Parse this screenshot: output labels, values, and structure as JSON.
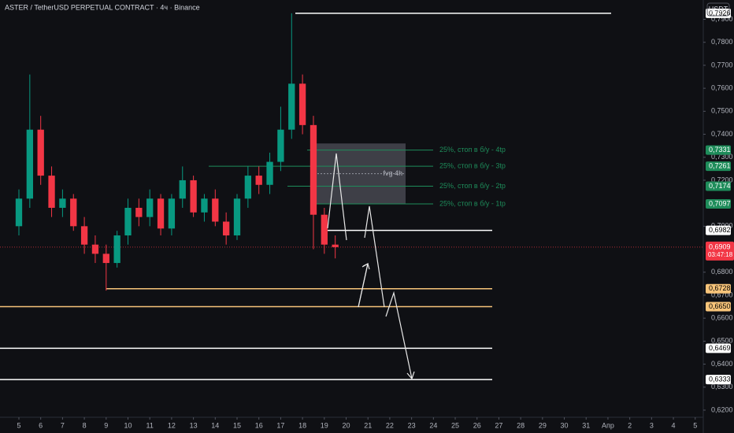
{
  "chart_data": {
    "type": "candlestick",
    "title": "ASTER / TetherUSD PERPETUAL CONTRACT · 4ч · Binance",
    "currency": "USDT",
    "x": [
      0,
      0.5,
      1,
      1.5,
      2,
      2.5,
      3,
      3.5,
      4,
      4.5,
      5,
      5.5,
      6,
      6.5,
      7,
      7.5,
      8,
      8.5,
      9,
      9.5,
      10,
      10.5,
      11,
      11.5,
      12,
      12.5,
      13,
      13.5,
      14,
      14.5
    ],
    "open": [
      0.7,
      0.712,
      0.742,
      0.722,
      0.708,
      0.712,
      0.7,
      0.692,
      0.688,
      0.684,
      0.696,
      0.708,
      0.704,
      0.712,
      0.699,
      0.712,
      0.72,
      0.706,
      0.712,
      0.702,
      0.696,
      0.712,
      0.722,
      0.718,
      0.728,
      0.742,
      0.762,
      0.744,
      0.705,
      0.692
    ],
    "high": [
      0.716,
      0.766,
      0.748,
      0.726,
      0.716,
      0.714,
      0.704,
      0.696,
      0.692,
      0.698,
      0.712,
      0.712,
      0.716,
      0.714,
      0.714,
      0.726,
      0.722,
      0.714,
      0.716,
      0.706,
      0.714,
      0.726,
      0.726,
      0.732,
      0.752,
      0.7926,
      0.766,
      0.748,
      0.708,
      0.696
    ],
    "low": [
      0.696,
      0.708,
      0.718,
      0.704,
      0.704,
      0.698,
      0.688,
      0.684,
      0.672,
      0.682,
      0.692,
      0.7,
      0.7,
      0.696,
      0.696,
      0.708,
      0.704,
      0.702,
      0.7,
      0.692,
      0.694,
      0.708,
      0.714,
      0.714,
      0.724,
      0.738,
      0.74,
      0.69,
      0.688,
      0.686
    ],
    "close": [
      0.712,
      0.742,
      0.722,
      0.708,
      0.712,
      0.7,
      0.692,
      0.688,
      0.684,
      0.696,
      0.708,
      0.704,
      0.712,
      0.699,
      0.712,
      0.72,
      0.706,
      0.712,
      0.702,
      0.696,
      0.712,
      0.722,
      0.718,
      0.728,
      0.742,
      0.762,
      0.744,
      0.705,
      0.692,
      0.6909
    ],
    "up_color": "#089981",
    "down_color": "#f23645",
    "xlim": [
      -0.866,
      31.37
    ],
    "ylim": [
      0.6169,
      0.7984
    ],
    "xticks": [
      {
        "value": 0,
        "label": "5"
      },
      {
        "value": 1,
        "label": "6"
      },
      {
        "value": 2,
        "label": "7"
      },
      {
        "value": 3,
        "label": "8"
      },
      {
        "value": 4,
        "label": "9"
      },
      {
        "value": 5,
        "label": "10"
      },
      {
        "value": 6,
        "label": "11"
      },
      {
        "value": 7,
        "label": "12"
      },
      {
        "value": 8,
        "label": "13"
      },
      {
        "value": 9,
        "label": "14"
      },
      {
        "value": 10,
        "label": "15"
      },
      {
        "value": 11,
        "label": "16"
      },
      {
        "value": 12,
        "label": "17"
      },
      {
        "value": 13,
        "label": "18"
      },
      {
        "value": 14,
        "label": "19"
      },
      {
        "value": 15,
        "label": "20"
      },
      {
        "value": 16,
        "label": "21"
      },
      {
        "value": 17,
        "label": "22"
      },
      {
        "value": 18,
        "label": "23"
      },
      {
        "value": 19,
        "label": "24"
      },
      {
        "value": 20,
        "label": "25"
      },
      {
        "value": 21,
        "label": "26"
      },
      {
        "value": 22,
        "label": "27"
      },
      {
        "value": 23,
        "label": "28"
      },
      {
        "value": 24,
        "label": "29"
      },
      {
        "value": 25,
        "label": "30"
      },
      {
        "value": 26,
        "label": "31"
      },
      {
        "value": 27,
        "label": "Апр"
      },
      {
        "value": 28,
        "label": "2"
      },
      {
        "value": 29,
        "label": "3"
      },
      {
        "value": 30,
        "label": "4"
      },
      {
        "value": 31,
        "label": "5"
      }
    ],
    "yticks": [
      {
        "value": 0.62,
        "label": "0,6200"
      },
      {
        "value": 0.63,
        "label": "0,6300"
      },
      {
        "value": 0.64,
        "label": "0,6400"
      },
      {
        "value": 0.65,
        "label": "0,6500"
      },
      {
        "value": 0.66,
        "label": "0,6600"
      },
      {
        "value": 0.67,
        "label": "0,6700"
      },
      {
        "value": 0.68,
        "label": "0,6800"
      },
      {
        "value": 0.7,
        "label": "0,7000"
      },
      {
        "value": 0.72,
        "label": "0,7200"
      },
      {
        "value": 0.73,
        "label": "0,7300"
      },
      {
        "value": 0.74,
        "label": "0,7400"
      },
      {
        "value": 0.75,
        "label": "0,7500"
      },
      {
        "value": 0.76,
        "label": "0,7600"
      },
      {
        "value": 0.77,
        "label": "0,7700"
      },
      {
        "value": 0.78,
        "label": "0,7800"
      },
      {
        "value": 0.79,
        "label": "0,7900"
      }
    ],
    "levels": [
      {
        "value": 0.7926,
        "label": "0,7926",
        "color": "#ffffff"
      },
      {
        "value": 0.7331,
        "label": "0,7331",
        "color": "#1e8c5a",
        "text": "25%, стоп в б/у - 4tp"
      },
      {
        "value": 0.7261,
        "label": "0,7261",
        "color": "#1e8c5a",
        "text": "25%, стоп в б/у - 3tp"
      },
      {
        "value": 0.7174,
        "label": "0,7174",
        "color": "#1e8c5a",
        "text": "25%, стоп в б/у - 2tp"
      },
      {
        "value": 0.7097,
        "label": "0,7097",
        "color": "#1e8c5a",
        "text": "25%, стоп в б/у - 1tp"
      },
      {
        "value": 0.6982,
        "label": "0,6982",
        "color": "#ffffff"
      },
      {
        "value": 0.6728,
        "label": "0,6728",
        "color": "#f7c47a"
      },
      {
        "value": 0.665,
        "label": "0,6650",
        "color": "#f7c47a"
      },
      {
        "value": 0.6469,
        "label": "0,6469",
        "color": "#ffffff"
      },
      {
        "value": 0.6333,
        "label": "0,6333",
        "color": "#ffffff"
      }
    ],
    "fvg": {
      "label": "fvg 4h",
      "top": 0.736,
      "bottom": 0.7097
    },
    "last_price": {
      "value": 0.6909,
      "label": "0,6909",
      "countdown": "03:47:18",
      "color": "#f23645"
    }
  }
}
